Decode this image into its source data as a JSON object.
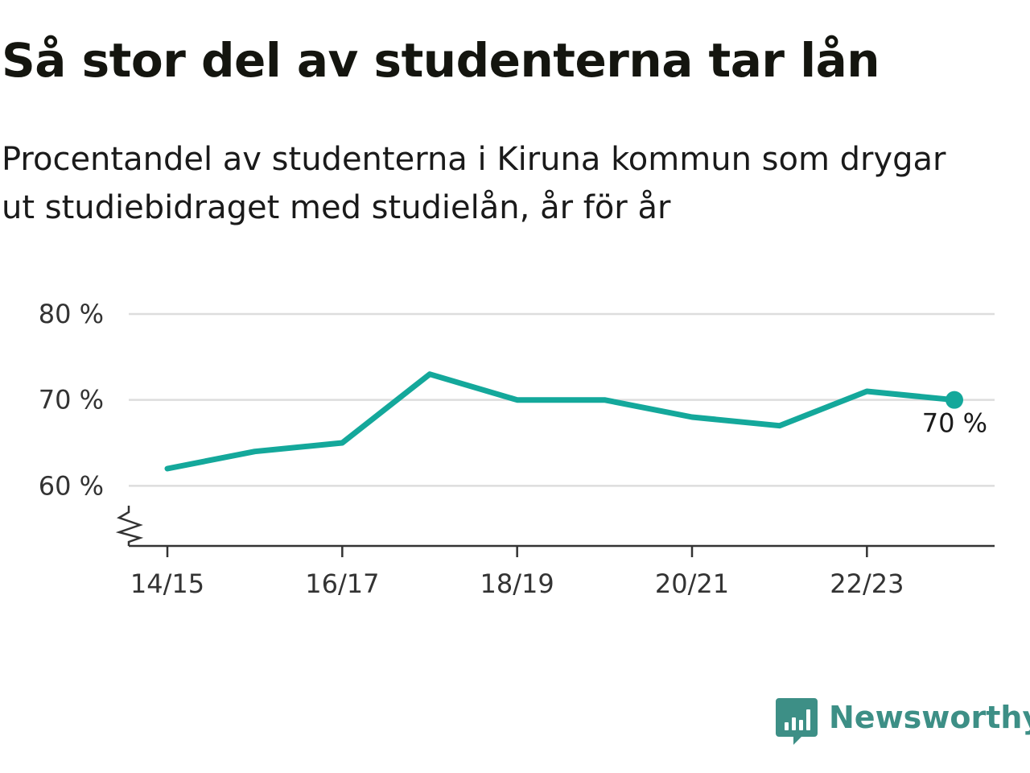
{
  "title": "Så stor del av studenterna tar lån",
  "subtitle": "Procentandel av studenterna i Kiruna kommun som drygar ut studiebidraget med studielån, år för år",
  "brand": {
    "name": "Newsworthy",
    "logo_icon": "bar-chart-speech-bubble-icon",
    "color": "#3d8f86"
  },
  "colors": {
    "line": "#14a89b",
    "grid": "#dddddd",
    "axis": "#333333"
  },
  "chart_data": {
    "type": "line",
    "x": [
      "14/15",
      "15/16",
      "16/17",
      "17/18",
      "18/19",
      "19/20",
      "20/21",
      "21/22",
      "22/23",
      "23/24"
    ],
    "tick_labels": [
      "14/15",
      "16/17",
      "18/19",
      "20/21",
      "22/23"
    ],
    "series": [
      {
        "values": [
          62,
          64,
          65,
          73,
          70,
          70,
          68,
          67,
          71,
          70
        ]
      }
    ],
    "yticks": [
      "60 %",
      "70 %",
      "80 %"
    ],
    "ytick_values": [
      60,
      70,
      80
    ],
    "ylim": [
      53,
      80
    ],
    "y_axis_broken": true,
    "end_label": "70 %",
    "grid": true,
    "legend": false
  }
}
